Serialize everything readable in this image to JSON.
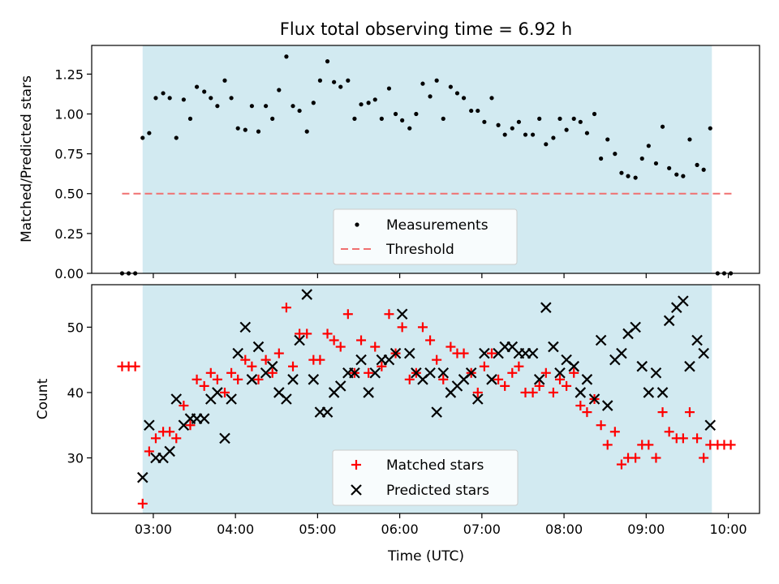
{
  "chart_data": [
    {
      "type": "scatter",
      "title": "Flux total observing time = 6.92 h",
      "xlabel": "",
      "ylabel": "Matched/Predicted stars",
      "x_unit": "hours UTC",
      "xlim": [
        2.25,
        10.38
      ],
      "ylim": [
        0,
        1.43
      ],
      "yticks": [
        0.0,
        0.25,
        0.5,
        0.75,
        1.0,
        1.25
      ],
      "ytick_labels": [
        "0.00",
        "0.25",
        "0.50",
        "0.75",
        "1.00",
        "1.25"
      ],
      "observing_window": [
        2.87,
        9.8
      ],
      "window_color": "#add8e6",
      "series": [
        {
          "name": "Measurements",
          "color": "#000000",
          "marker": "dot",
          "points": [
            [
              2.62,
              0.0
            ],
            [
              2.7,
              0.0
            ],
            [
              2.78,
              0.0
            ],
            [
              2.87,
              0.85
            ],
            [
              2.95,
              0.88
            ],
            [
              3.03,
              1.1
            ],
            [
              3.12,
              1.13
            ],
            [
              3.2,
              1.1
            ],
            [
              3.28,
              0.85
            ],
            [
              3.37,
              1.09
            ],
            [
              3.45,
              0.97
            ],
            [
              3.53,
              1.17
            ],
            [
              3.62,
              1.14
            ],
            [
              3.7,
              1.1
            ],
            [
              3.78,
              1.05
            ],
            [
              3.87,
              1.21
            ],
            [
              3.95,
              1.1
            ],
            [
              4.03,
              0.91
            ],
            [
              4.12,
              0.9
            ],
            [
              4.2,
              1.05
            ],
            [
              4.28,
              0.89
            ],
            [
              4.37,
              1.05
            ],
            [
              4.45,
              0.97
            ],
            [
              4.53,
              1.15
            ],
            [
              4.62,
              1.36
            ],
            [
              4.7,
              1.05
            ],
            [
              4.78,
              1.02
            ],
            [
              4.87,
              0.89
            ],
            [
              4.95,
              1.07
            ],
            [
              5.03,
              1.21
            ],
            [
              5.12,
              1.33
            ],
            [
              5.2,
              1.2
            ],
            [
              5.28,
              1.17
            ],
            [
              5.37,
              1.21
            ],
            [
              5.45,
              0.97
            ],
            [
              5.53,
              1.06
            ],
            [
              5.62,
              1.07
            ],
            [
              5.7,
              1.09
            ],
            [
              5.78,
              0.97
            ],
            [
              5.87,
              1.16
            ],
            [
              5.95,
              1.0
            ],
            [
              6.03,
              0.96
            ],
            [
              6.12,
              0.91
            ],
            [
              6.2,
              1.0
            ],
            [
              6.28,
              1.19
            ],
            [
              6.37,
              1.11
            ],
            [
              6.45,
              1.21
            ],
            [
              6.53,
              0.97
            ],
            [
              6.62,
              1.17
            ],
            [
              6.7,
              1.13
            ],
            [
              6.78,
              1.1
            ],
            [
              6.87,
              1.02
            ],
            [
              6.95,
              1.02
            ],
            [
              7.03,
              0.95
            ],
            [
              7.12,
              1.1
            ],
            [
              7.2,
              0.93
            ],
            [
              7.28,
              0.87
            ],
            [
              7.37,
              0.91
            ],
            [
              7.45,
              0.95
            ],
            [
              7.53,
              0.87
            ],
            [
              7.62,
              0.87
            ],
            [
              7.7,
              0.97
            ],
            [
              7.78,
              0.81
            ],
            [
              7.87,
              0.85
            ],
            [
              7.95,
              0.97
            ],
            [
              8.03,
              0.9
            ],
            [
              8.12,
              0.97
            ],
            [
              8.2,
              0.95
            ],
            [
              8.28,
              0.88
            ],
            [
              8.37,
              1.0
            ],
            [
              8.45,
              0.72
            ],
            [
              8.53,
              0.84
            ],
            [
              8.62,
              0.75
            ],
            [
              8.7,
              0.63
            ],
            [
              8.78,
              0.61
            ],
            [
              8.87,
              0.6
            ],
            [
              8.95,
              0.72
            ],
            [
              9.03,
              0.8
            ],
            [
              9.12,
              0.69
            ],
            [
              9.2,
              0.92
            ],
            [
              9.28,
              0.66
            ],
            [
              9.37,
              0.62
            ],
            [
              9.45,
              0.61
            ],
            [
              9.53,
              0.84
            ],
            [
              9.62,
              0.68
            ],
            [
              9.7,
              0.65
            ],
            [
              9.78,
              0.91
            ],
            [
              9.87,
              0.0
            ],
            [
              9.95,
              0.0
            ],
            [
              10.03,
              0.0
            ]
          ]
        },
        {
          "name": "Threshold",
          "color": "#f07070",
          "style": "dashed",
          "points": [
            [
              2.62,
              0.5
            ],
            [
              10.06,
              0.5
            ]
          ]
        }
      ],
      "legend": {
        "placement": "lower-center"
      }
    },
    {
      "type": "scatter",
      "title": "",
      "xlabel": "Time (UTC)",
      "ylabel": "Count",
      "x_unit": "hours UTC",
      "xlim": [
        2.25,
        10.38
      ],
      "ylim": [
        21.5,
        56.5
      ],
      "yticks": [
        30,
        40,
        50
      ],
      "ytick_labels": [
        "30",
        "40",
        "50"
      ],
      "xticks": [
        3,
        4,
        5,
        6,
        7,
        8,
        9,
        10
      ],
      "xtick_labels": [
        "03:00",
        "04:00",
        "05:00",
        "06:00",
        "07:00",
        "08:00",
        "09:00",
        "10:00"
      ],
      "observing_window": [
        2.87,
        9.8
      ],
      "window_color": "#add8e6",
      "series": [
        {
          "name": "Matched stars",
          "color": "#ff0000",
          "marker": "plus",
          "points": [
            [
              2.62,
              44
            ],
            [
              2.7,
              44
            ],
            [
              2.78,
              44
            ],
            [
              2.87,
              23
            ],
            [
              2.95,
              31
            ],
            [
              3.03,
              33
            ],
            [
              3.12,
              34
            ],
            [
              3.2,
              34
            ],
            [
              3.28,
              33
            ],
            [
              3.37,
              38
            ],
            [
              3.45,
              35
            ],
            [
              3.53,
              42
            ],
            [
              3.62,
              41
            ],
            [
              3.7,
              43
            ],
            [
              3.78,
              42
            ],
            [
              3.87,
              40
            ],
            [
              3.95,
              43
            ],
            [
              4.03,
              42
            ],
            [
              4.12,
              45
            ],
            [
              4.2,
              44
            ],
            [
              4.28,
              42
            ],
            [
              4.37,
              45
            ],
            [
              4.45,
              43
            ],
            [
              4.53,
              46
            ],
            [
              4.62,
              53
            ],
            [
              4.7,
              44
            ],
            [
              4.78,
              49
            ],
            [
              4.87,
              49
            ],
            [
              4.95,
              45
            ],
            [
              5.03,
              45
            ],
            [
              5.12,
              49
            ],
            [
              5.2,
              48
            ],
            [
              5.28,
              47
            ],
            [
              5.37,
              52
            ],
            [
              5.45,
              43
            ],
            [
              5.53,
              48
            ],
            [
              5.62,
              43
            ],
            [
              5.7,
              47
            ],
            [
              5.78,
              44
            ],
            [
              5.87,
              52
            ],
            [
              5.95,
              46
            ],
            [
              6.03,
              50
            ],
            [
              6.12,
              42
            ],
            [
              6.2,
              43
            ],
            [
              6.28,
              50
            ],
            [
              6.37,
              48
            ],
            [
              6.45,
              45
            ],
            [
              6.53,
              42
            ],
            [
              6.62,
              47
            ],
            [
              6.7,
              46
            ],
            [
              6.78,
              46
            ],
            [
              6.87,
              43
            ],
            [
              6.95,
              40
            ],
            [
              7.03,
              44
            ],
            [
              7.12,
              46
            ],
            [
              7.2,
              42
            ],
            [
              7.28,
              41
            ],
            [
              7.37,
              43
            ],
            [
              7.45,
              44
            ],
            [
              7.53,
              40
            ],
            [
              7.62,
              40
            ],
            [
              7.7,
              41
            ],
            [
              7.78,
              43
            ],
            [
              7.87,
              40
            ],
            [
              7.95,
              42
            ],
            [
              8.03,
              41
            ],
            [
              8.12,
              43
            ],
            [
              8.2,
              38
            ],
            [
              8.28,
              37
            ],
            [
              8.37,
              39
            ],
            [
              8.45,
              35
            ],
            [
              8.53,
              32
            ],
            [
              8.62,
              34
            ],
            [
              8.7,
              29
            ],
            [
              8.78,
              30
            ],
            [
              8.87,
              30
            ],
            [
              8.95,
              32
            ],
            [
              9.03,
              32
            ],
            [
              9.12,
              30
            ],
            [
              9.2,
              37
            ],
            [
              9.28,
              34
            ],
            [
              9.37,
              33
            ],
            [
              9.45,
              33
            ],
            [
              9.53,
              37
            ],
            [
              9.62,
              33
            ],
            [
              9.7,
              30
            ],
            [
              9.78,
              32
            ],
            [
              9.87,
              32
            ],
            [
              9.95,
              32
            ],
            [
              10.03,
              32
            ]
          ]
        },
        {
          "name": "Predicted stars",
          "color": "#000000",
          "marker": "x",
          "points": [
            [
              2.87,
              27
            ],
            [
              2.95,
              35
            ],
            [
              3.03,
              30
            ],
            [
              3.12,
              30
            ],
            [
              3.2,
              31
            ],
            [
              3.28,
              39
            ],
            [
              3.37,
              35
            ],
            [
              3.45,
              36
            ],
            [
              3.53,
              36
            ],
            [
              3.62,
              36
            ],
            [
              3.7,
              39
            ],
            [
              3.78,
              40
            ],
            [
              3.87,
              33
            ],
            [
              3.95,
              39
            ],
            [
              4.03,
              46
            ],
            [
              4.12,
              50
            ],
            [
              4.2,
              42
            ],
            [
              4.28,
              47
            ],
            [
              4.37,
              43
            ],
            [
              4.45,
              44
            ],
            [
              4.53,
              40
            ],
            [
              4.62,
              39
            ],
            [
              4.7,
              42
            ],
            [
              4.78,
              48
            ],
            [
              4.87,
              55
            ],
            [
              4.95,
              42
            ],
            [
              5.03,
              37
            ],
            [
              5.12,
              37
            ],
            [
              5.2,
              40
            ],
            [
              5.28,
              41
            ],
            [
              5.37,
              43
            ],
            [
              5.45,
              43
            ],
            [
              5.53,
              45
            ],
            [
              5.62,
              40
            ],
            [
              5.7,
              43
            ],
            [
              5.78,
              45
            ],
            [
              5.87,
              45
            ],
            [
              5.95,
              46
            ],
            [
              6.03,
              52
            ],
            [
              6.12,
              46
            ],
            [
              6.2,
              43
            ],
            [
              6.28,
              42
            ],
            [
              6.37,
              43
            ],
            [
              6.45,
              37
            ],
            [
              6.53,
              43
            ],
            [
              6.62,
              40
            ],
            [
              6.7,
              41
            ],
            [
              6.78,
              42
            ],
            [
              6.87,
              43
            ],
            [
              6.95,
              39
            ],
            [
              7.03,
              46
            ],
            [
              7.12,
              42
            ],
            [
              7.2,
              46
            ],
            [
              7.28,
              47
            ],
            [
              7.37,
              47
            ],
            [
              7.45,
              46
            ],
            [
              7.53,
              46
            ],
            [
              7.62,
              46
            ],
            [
              7.7,
              42
            ],
            [
              7.78,
              53
            ],
            [
              7.87,
              47
            ],
            [
              7.95,
              43
            ],
            [
              8.03,
              45
            ],
            [
              8.12,
              44
            ],
            [
              8.2,
              40
            ],
            [
              8.28,
              42
            ],
            [
              8.37,
              39
            ],
            [
              8.45,
              48
            ],
            [
              8.53,
              38
            ],
            [
              8.62,
              45
            ],
            [
              8.7,
              46
            ],
            [
              8.78,
              49
            ],
            [
              8.87,
              50
            ],
            [
              8.95,
              44
            ],
            [
              9.03,
              40
            ],
            [
              9.12,
              43
            ],
            [
              9.2,
              40
            ],
            [
              9.28,
              51
            ],
            [
              9.37,
              53
            ],
            [
              9.45,
              54
            ],
            [
              9.53,
              44
            ],
            [
              9.62,
              48
            ],
            [
              9.7,
              46
            ],
            [
              9.78,
              35
            ]
          ]
        }
      ],
      "legend": {
        "placement": "lower-center"
      }
    }
  ]
}
